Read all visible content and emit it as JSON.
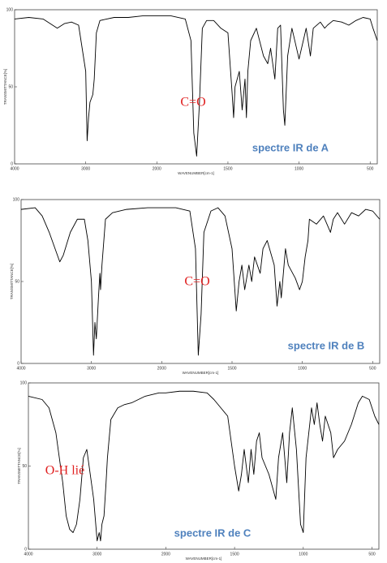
{
  "chart_data": [
    {
      "type": "line",
      "xlabel": "WAVENUMBER[cm-1]",
      "ylabel": "TRANSMITTANCE[%]",
      "annotations": [
        "C=O",
        "spectre IR de A"
      ],
      "color": "#000000",
      "xlim": [
        4000,
        450
      ],
      "xticks": [
        4000,
        3000,
        2000,
        1500,
        1000,
        500
      ],
      "xscale_break": 2000,
      "ylim": [
        0,
        100
      ],
      "yticks": [
        0,
        50,
        100
      ],
      "x": [
        4000,
        3800,
        3600,
        3400,
        3300,
        3200,
        3100,
        3000,
        2980,
        2960,
        2940,
        2900,
        2880,
        2850,
        2800,
        2600,
        2400,
        2200,
        2000,
        1900,
        1800,
        1760,
        1740,
        1720,
        1700,
        1680,
        1650,
        1600,
        1550,
        1500,
        1470,
        1460,
        1450,
        1420,
        1400,
        1380,
        1370,
        1360,
        1340,
        1300,
        1250,
        1220,
        1200,
        1170,
        1150,
        1130,
        1110,
        1100,
        1080,
        1050,
        1000,
        970,
        950,
        920,
        900,
        850,
        820,
        800,
        760,
        700,
        650,
        600,
        550,
        500,
        480,
        450
      ],
      "values": [
        94,
        95,
        94,
        88,
        91,
        92,
        90,
        60,
        15,
        30,
        40,
        45,
        55,
        85,
        93,
        95,
        95,
        96,
        96,
        96,
        94,
        80,
        20,
        5,
        40,
        88,
        93,
        93,
        88,
        85,
        45,
        30,
        50,
        60,
        35,
        55,
        30,
        60,
        80,
        88,
        70,
        65,
        75,
        55,
        88,
        90,
        35,
        25,
        70,
        88,
        68,
        80,
        88,
        70,
        88,
        92,
        88,
        90,
        93,
        92,
        90,
        93,
        95,
        94,
        88,
        80
      ]
    },
    {
      "type": "line",
      "xlabel": "WAVENUMBER[cm-1]",
      "ylabel": "TRANSMITTANCE[%]",
      "annotations": [
        "C=O",
        "spectre IR de B"
      ],
      "color": "#000000",
      "xlim": [
        4000,
        450
      ],
      "xticks": [
        4000,
        3000,
        2000,
        1500,
        1000,
        500
      ],
      "xscale_break": 2000,
      "ylim": [
        0,
        100
      ],
      "yticks": [
        0,
        50,
        100
      ],
      "x": [
        4000,
        3800,
        3700,
        3600,
        3500,
        3450,
        3400,
        3300,
        3200,
        3100,
        3050,
        3000,
        2970,
        2950,
        2930,
        2900,
        2880,
        2870,
        2850,
        2800,
        2700,
        2500,
        2200,
        2000,
        1900,
        1800,
        1760,
        1740,
        1720,
        1700,
        1650,
        1600,
        1550,
        1500,
        1470,
        1450,
        1430,
        1410,
        1380,
        1360,
        1340,
        1300,
        1280,
        1250,
        1200,
        1180,
        1160,
        1150,
        1120,
        1100,
        1050,
        1020,
        1000,
        980,
        960,
        950,
        900,
        850,
        800,
        780,
        750,
        700,
        650,
        600,
        550,
        500,
        450
      ],
      "values": [
        94,
        95,
        90,
        80,
        68,
        62,
        66,
        80,
        88,
        88,
        75,
        50,
        5,
        25,
        15,
        40,
        55,
        45,
        60,
        88,
        92,
        94,
        95,
        95,
        95,
        93,
        70,
        5,
        30,
        80,
        93,
        95,
        90,
        70,
        32,
        50,
        60,
        45,
        60,
        50,
        65,
        55,
        70,
        75,
        60,
        35,
        50,
        40,
        70,
        60,
        52,
        45,
        50,
        65,
        75,
        88,
        85,
        90,
        80,
        88,
        92,
        85,
        92,
        90,
        94,
        93,
        88
      ]
    },
    {
      "type": "line",
      "xlabel": "WAVENUMBER[cm-1]",
      "ylabel": "TRANSMITTANCE[%]",
      "annotations": [
        "O-H lié",
        "spectre IR de C"
      ],
      "color": "#000000",
      "xlim": [
        4000,
        450
      ],
      "xticks": [
        4000,
        3000,
        2000,
        1500,
        1000,
        500
      ],
      "xscale_break": 2000,
      "ylim": [
        0,
        100
      ],
      "yticks": [
        0,
        50,
        100
      ],
      "x": [
        4000,
        3800,
        3700,
        3600,
        3500,
        3450,
        3400,
        3350,
        3300,
        3250,
        3200,
        3150,
        3100,
        3050,
        3000,
        2970,
        2950,
        2930,
        2900,
        2870,
        2850,
        2800,
        2700,
        2600,
        2500,
        2300,
        2100,
        2000,
        1900,
        1800,
        1700,
        1650,
        1600,
        1550,
        1500,
        1470,
        1450,
        1430,
        1400,
        1380,
        1360,
        1340,
        1320,
        1300,
        1250,
        1200,
        1180,
        1150,
        1120,
        1100,
        1080,
        1050,
        1020,
        1000,
        980,
        960,
        940,
        920,
        900,
        880,
        860,
        840,
        800,
        780,
        750,
        700,
        650,
        600,
        570,
        520,
        480,
        450
      ],
      "values": [
        92,
        90,
        85,
        70,
        40,
        20,
        12,
        10,
        15,
        30,
        55,
        60,
        45,
        30,
        5,
        10,
        5,
        15,
        20,
        40,
        55,
        78,
        85,
        87,
        88,
        92,
        94,
        94,
        95,
        95,
        94,
        90,
        85,
        80,
        50,
        35,
        45,
        60,
        40,
        60,
        45,
        65,
        70,
        55,
        45,
        30,
        55,
        70,
        40,
        70,
        85,
        60,
        15,
        10,
        55,
        70,
        85,
        75,
        88,
        75,
        65,
        80,
        70,
        55,
        60,
        65,
        75,
        88,
        92,
        90,
        80,
        75
      ]
    }
  ]
}
